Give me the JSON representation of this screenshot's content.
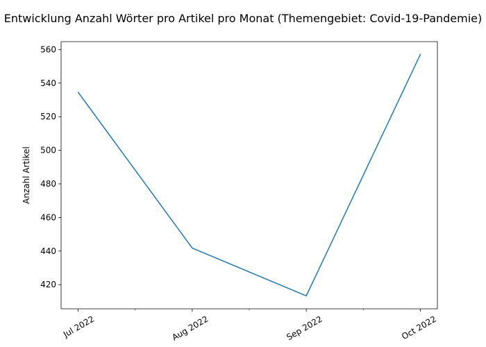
{
  "chart_data": {
    "type": "line",
    "title": "Entwicklung Anzahl Wörter pro Artikel pro Monat (Themengebiet: Covid-19-Pandemie)",
    "xlabel": "",
    "ylabel": "Anzahl Artikel",
    "categories": [
      "Jul 2022",
      "Aug 2022",
      "Sep 2022",
      "Oct 2022"
    ],
    "series": [
      {
        "values": [
          534.5,
          441.8,
          413.3,
          557.0
        ]
      }
    ],
    "ylim": [
      405.6,
      564.7
    ],
    "yticks": [
      420,
      440,
      460,
      480,
      500,
      520,
      540,
      560
    ],
    "minor_xticks": true,
    "grid": false,
    "legend": "none",
    "line_color": "#1f77b4"
  }
}
